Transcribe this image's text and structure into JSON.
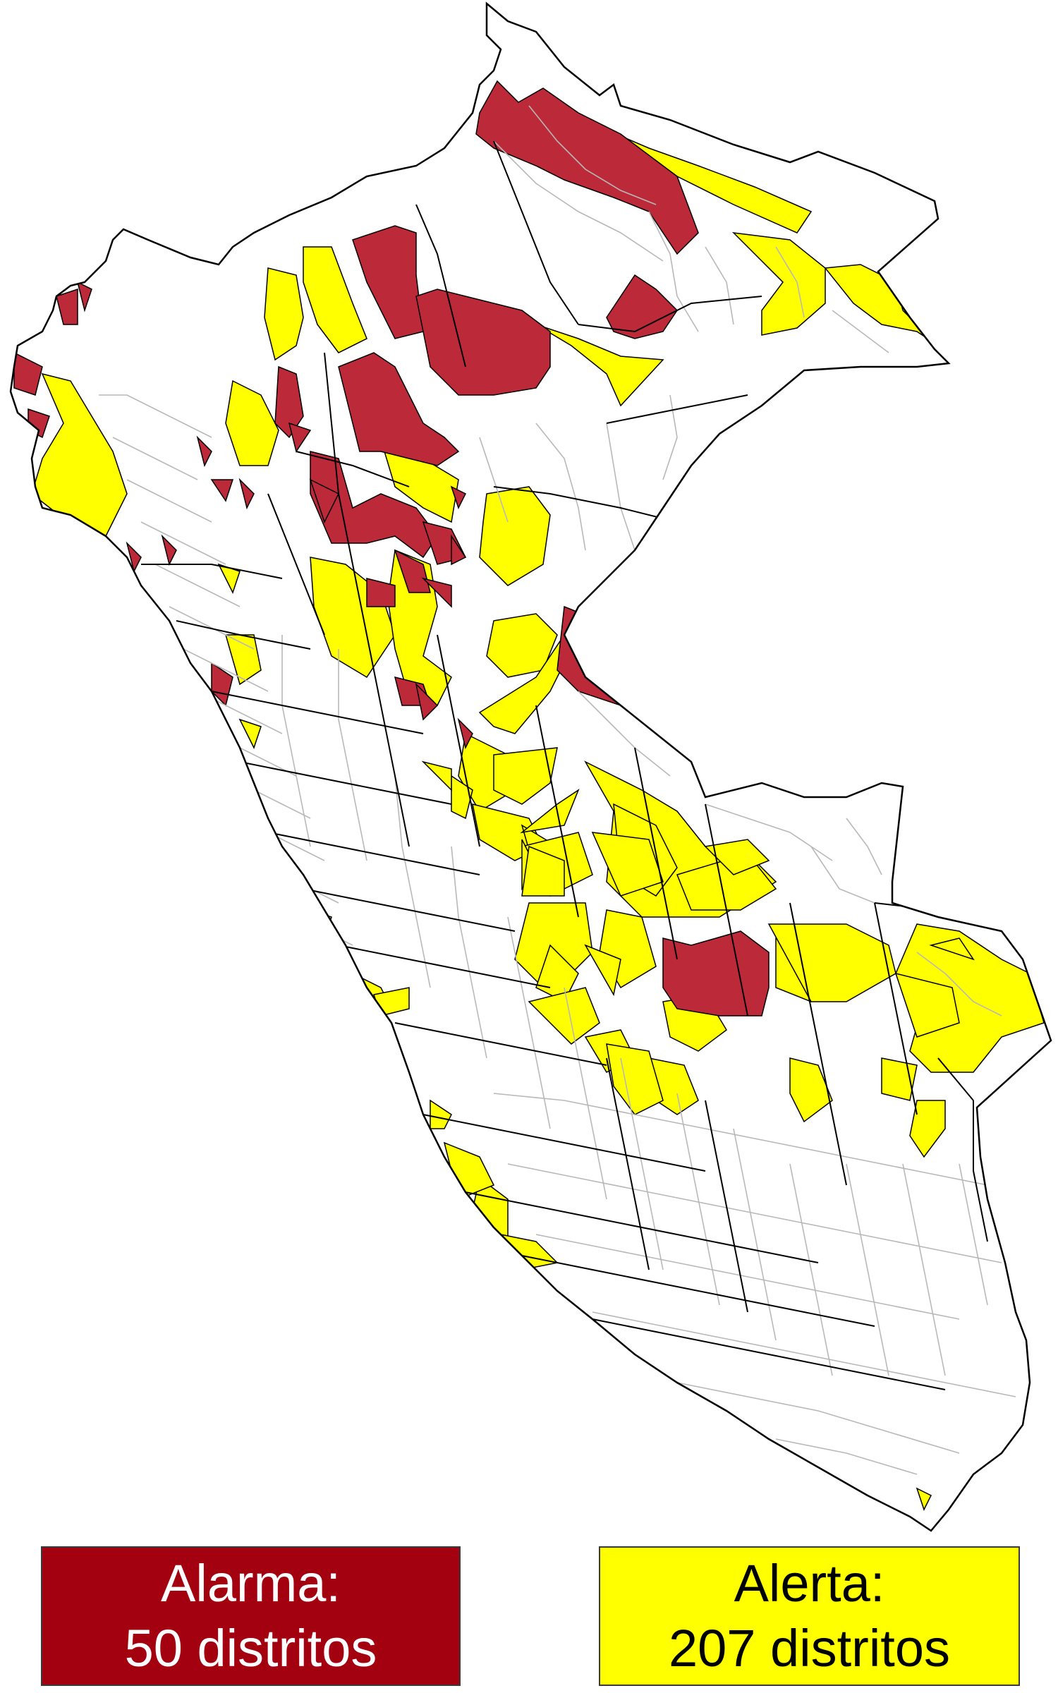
{
  "colors": {
    "alarma": "#a30010",
    "alarma_map": "#bc2a3a",
    "alerta": "#ffff00",
    "background": "#ffffff",
    "border_major": "#000000",
    "border_minor": "#b8b8b8"
  },
  "legend": {
    "alarma": {
      "title": "Alarma:",
      "count_text": "50 distritos",
      "count": 50,
      "color": "#a30010"
    },
    "alerta": {
      "title": "Alerta:",
      "count_text": "207 distritos",
      "count": 207,
      "color": "#ffff00"
    }
  }
}
